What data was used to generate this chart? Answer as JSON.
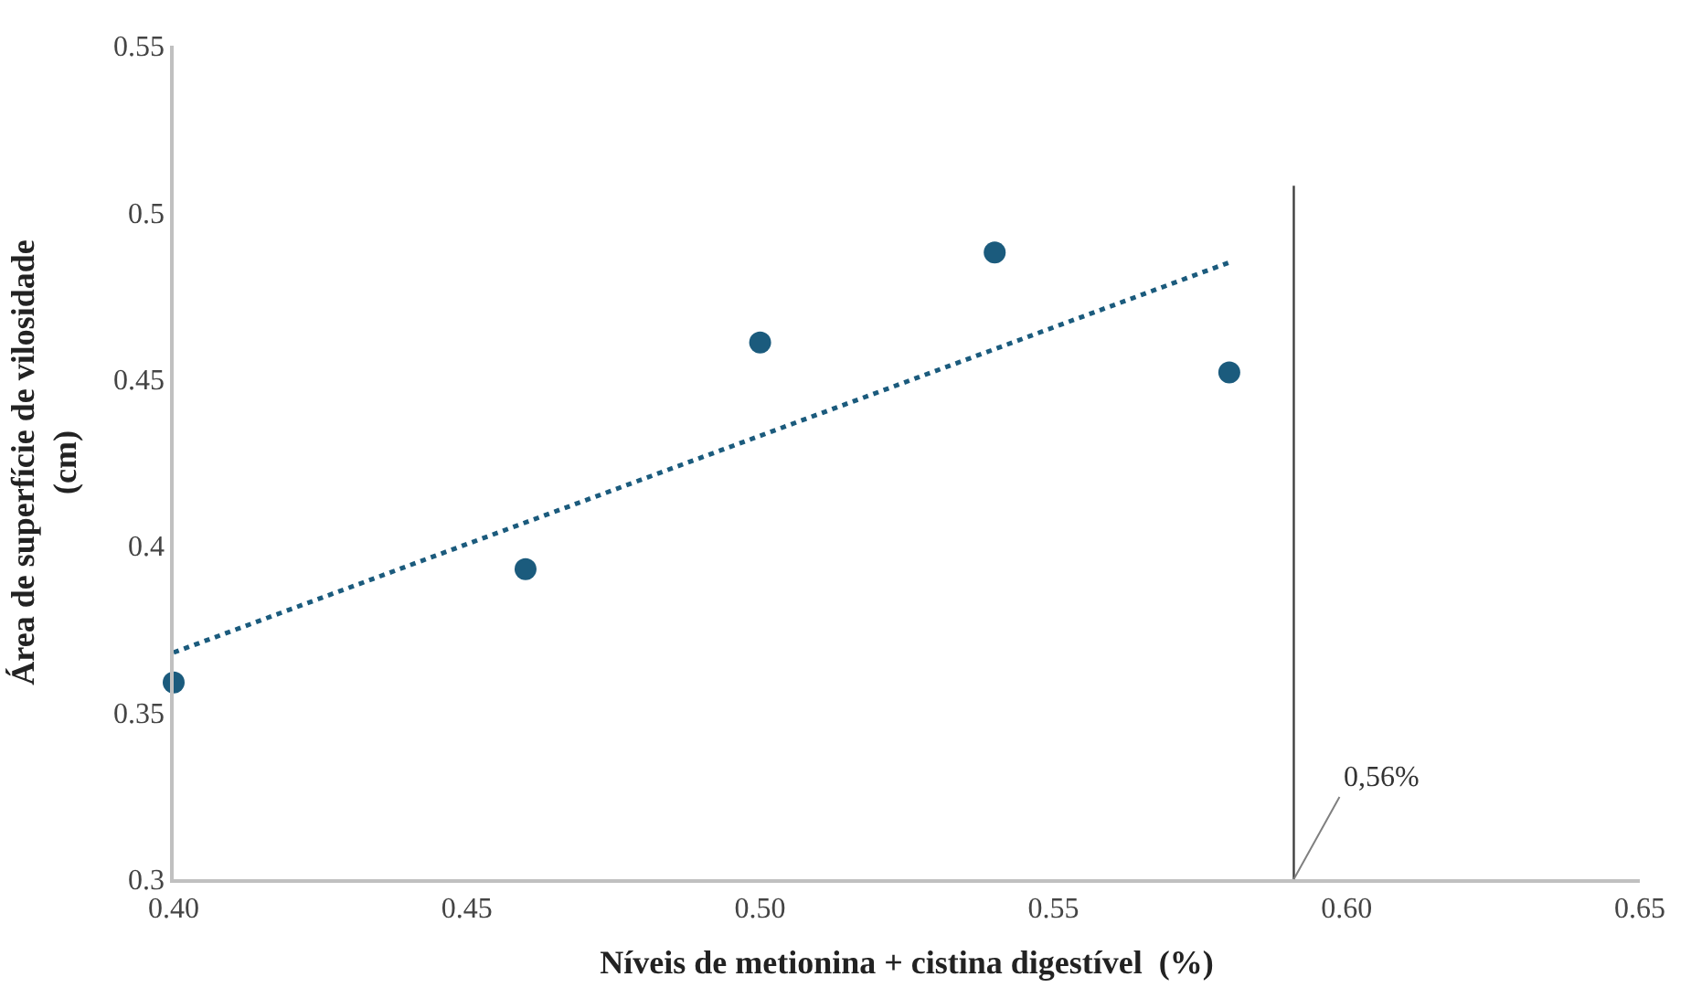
{
  "chart_data": {
    "type": "scatter",
    "xlabel": "Níveis de metionina + cistina digestível  (%)",
    "ylabel": "Área de superfície de vilosidade\n(cm)",
    "series": [
      {
        "color": "#1b5b7d",
        "x": [
          0.4,
          0.46,
          0.5,
          0.54,
          0.58
        ],
        "values": [
          0.359,
          0.393,
          0.461,
          0.488,
          0.452
        ],
        "marker": "circle"
      },
      {
        "type": "line",
        "color": "#1b5b7d",
        "x": [
          0.4,
          0.58
        ],
        "values": [
          0.368,
          0.485
        ],
        "line_style": "dotted"
      }
    ],
    "xlim": [
      0.4,
      0.65
    ],
    "xticks": [
      {
        "value": 0.4,
        "label": "0.40"
      },
      {
        "value": 0.45,
        "label": "0.45"
      },
      {
        "value": 0.5,
        "label": "0.50"
      },
      {
        "value": 0.55,
        "label": "0.55"
      },
      {
        "value": 0.6,
        "label": "0.60"
      },
      {
        "value": 0.65,
        "label": "0.65"
      }
    ],
    "ylim": [
      0.3,
      0.55
    ],
    "yticks": [
      0.3,
      0.35,
      0.4,
      0.45,
      0.5,
      0.55
    ],
    "ref_lines": [
      {
        "axis": "x",
        "value": 0.591,
        "color": "#404040"
      }
    ],
    "annotations": [
      {
        "text": "0,56%",
        "x": 0.591,
        "y": 0.3
      }
    ],
    "grid": false,
    "legend": false
  }
}
